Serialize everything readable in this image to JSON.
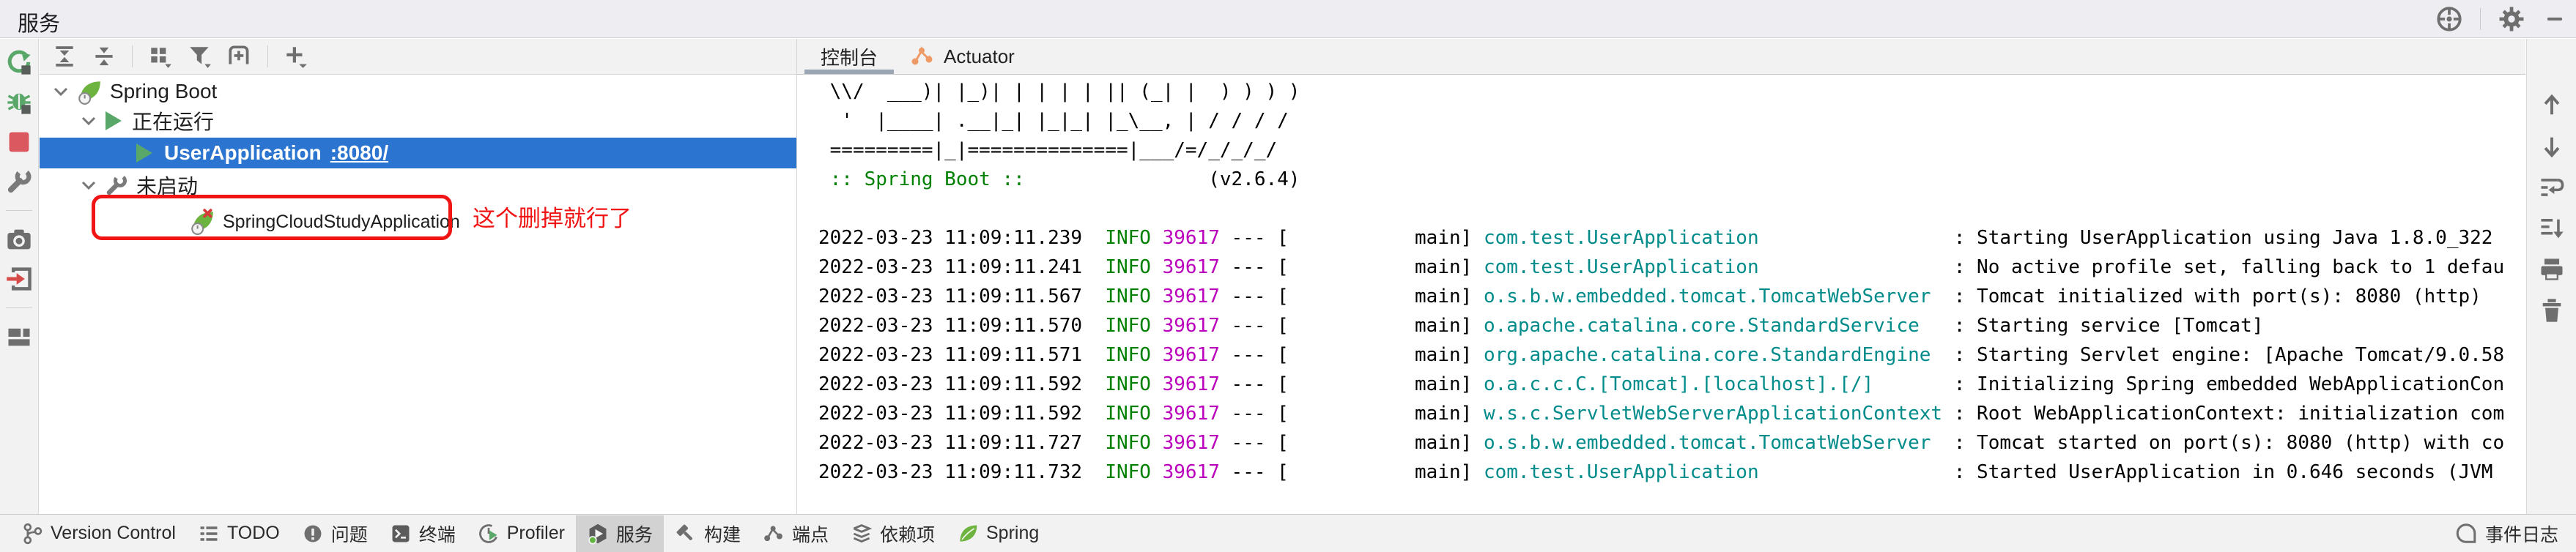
{
  "window": {
    "title": "服务"
  },
  "tree": {
    "root_label": "Spring Boot",
    "running_label": "正在运行",
    "running_app": {
      "name": "UserApplication",
      "port": ":8080/"
    },
    "stopped_label": "未启动",
    "stopped_app": "SpringCloudStudyApplication",
    "note": "这个删掉就行了"
  },
  "console": {
    "tabs": {
      "console": "控制台",
      "actuator": "Actuator"
    },
    "banner_lines": [
      " \\\\/  ___)| |_)| | | | | || (_| |  ) ) ) )",
      "  '  |____| .__|_| |_|_| |_\\__, | / / / /",
      " =========|_|==============|___/=/_/_/_/"
    ],
    "banner_brand": " :: Spring Boot ::",
    "banner_version": "                (v2.6.4)",
    "log": {
      "date": "2022-03-23",
      "level": "INFO",
      "pid": "39617",
      "thread": "main",
      "lines": [
        {
          "time": "11:09:11.239",
          "logger": "com.test.UserApplication",
          "message": "Starting UserApplication using Java 1.8.0_322"
        },
        {
          "time": "11:09:11.241",
          "logger": "com.test.UserApplication",
          "message": "No active profile set, falling back to 1 defau"
        },
        {
          "time": "11:09:11.567",
          "logger": "o.s.b.w.embedded.tomcat.TomcatWebServer",
          "message": "Tomcat initialized with port(s): 8080 (http)"
        },
        {
          "time": "11:09:11.570",
          "logger": "o.apache.catalina.core.StandardService",
          "message": "Starting service [Tomcat]"
        },
        {
          "time": "11:09:11.571",
          "logger": "org.apache.catalina.core.StandardEngine",
          "message": "Starting Servlet engine: [Apache Tomcat/9.0.58"
        },
        {
          "time": "11:09:11.592",
          "logger": "o.a.c.c.C.[Tomcat].[localhost].[/]",
          "message": "Initializing Spring embedded WebApplicationCon"
        },
        {
          "time": "11:09:11.592",
          "logger": "w.s.c.ServletWebServerApplicationContext",
          "message": "Root WebApplicationContext: initialization com"
        },
        {
          "time": "11:09:11.727",
          "logger": "o.s.b.w.embedded.tomcat.TomcatWebServer",
          "message": "Tomcat started on port(s): 8080 (http) with co"
        },
        {
          "time": "11:09:11.732",
          "logger": "com.test.UserApplication",
          "message": "Started UserApplication in 0.646 seconds (JVM"
        }
      ]
    }
  },
  "status_bar": {
    "items": [
      {
        "label": "Version Control"
      },
      {
        "label": "TODO"
      },
      {
        "label": "问题"
      },
      {
        "label": "终端"
      },
      {
        "label": "Profiler"
      },
      {
        "label": "服务",
        "selected": true
      },
      {
        "label": "构建"
      },
      {
        "label": "端点"
      },
      {
        "label": "依赖项"
      },
      {
        "label": "Spring"
      }
    ],
    "event_log": "事件日志"
  },
  "colors": {
    "selection_blue": "#2b74cf",
    "log_info_green": "#008000",
    "log_pid_magenta": "#bb00bb",
    "log_logger_teal": "#008b8b",
    "annotation_red": "#f01414",
    "spring_green": "#6DB33F",
    "run_green": "#59A869",
    "stop_red": "#DB5860",
    "actuator_orange": "#ED9A67",
    "tab_underline": "#9aa6b4"
  }
}
